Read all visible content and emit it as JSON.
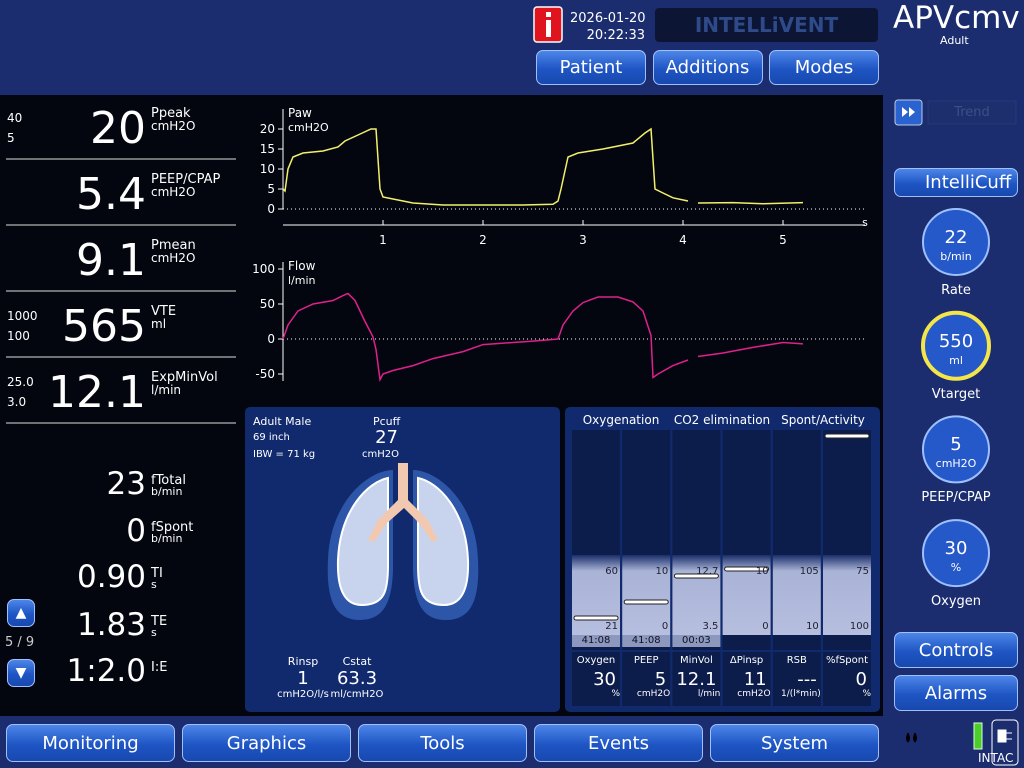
{
  "header": {
    "date": "2026-01-20",
    "time": "20:22:33",
    "brand": "INTELLiVENT",
    "mode": "APVcmv",
    "patient_group": "Adult",
    "buttons": [
      "Patient",
      "Additions",
      "Modes"
    ]
  },
  "monitoring": [
    {
      "name": "Ppeak",
      "unit": "cmH2O",
      "value": "20",
      "high": "40",
      "low": "5"
    },
    {
      "name": "PEEP/CPAP",
      "unit": "cmH2O",
      "value": "5.4"
    },
    {
      "name": "Pmean",
      "unit": "cmH2O",
      "value": "9.1"
    },
    {
      "name": "VTE",
      "unit": "ml",
      "value": "565",
      "high": "1000",
      "low": "100"
    },
    {
      "name": "ExpMinVol",
      "unit": "l/min",
      "value": "12.1",
      "high": "25.0",
      "low": "3.0"
    }
  ],
  "timing": [
    {
      "name": "fTotal",
      "unit": "b/min",
      "value": "23"
    },
    {
      "name": "fSpont",
      "unit": "b/min",
      "value": "0"
    },
    {
      "name": "TI",
      "unit": "s",
      "value": "0.90"
    },
    {
      "name": "TE",
      "unit": "s",
      "value": "1.83"
    },
    {
      "name": "I:E",
      "value": "1:2.0"
    }
  ],
  "page_indicator": "5 / 9",
  "chart_data": [
    {
      "type": "line",
      "title": "Paw",
      "unit": "cmH2O",
      "x_unit": "s",
      "color": "#f2f06a",
      "xlim": [
        0,
        5.82
      ],
      "xticks": [
        1,
        2,
        3,
        4,
        5
      ],
      "ylim": [
        0,
        25
      ],
      "yticks": [
        0,
        5,
        10,
        15,
        20
      ],
      "x": [
        0,
        0.02,
        0.05,
        0.1,
        0.2,
        0.4,
        0.55,
        0.62,
        0.75,
        0.88,
        0.93,
        0.97,
        1.0,
        1.1,
        1.3,
        1.6,
        2.0,
        2.4,
        2.7,
        2.75,
        2.78,
        2.85,
        2.95,
        3.2,
        3.5,
        3.62,
        3.68,
        3.72,
        3.8,
        3.9,
        4.05,
        4.1,
        4.15,
        4.5,
        4.8,
        5.2
      ],
      "values": [
        5,
        4.5,
        10,
        13,
        14,
        14.5,
        15.5,
        17,
        18.5,
        20,
        20,
        5,
        3,
        2.5,
        1.5,
        1,
        1,
        1,
        1.2,
        2,
        5,
        13,
        14,
        15,
        16.5,
        19,
        20,
        5,
        4,
        2.8,
        2,
        null,
        1.5,
        1.6,
        1.3,
        1.6
      ]
    },
    {
      "type": "line",
      "title": "Flow",
      "unit": "l/min",
      "color": "#e0208c",
      "xlim": [
        0,
        5.82
      ],
      "ylim": [
        -60,
        110
      ],
      "yticks": [
        -50,
        0,
        50,
        100
      ],
      "x": [
        0,
        0.05,
        0.15,
        0.3,
        0.5,
        0.6,
        0.65,
        0.72,
        0.82,
        0.9,
        0.93,
        0.97,
        1.0,
        1.1,
        1.3,
        1.5,
        1.8,
        2.0,
        2.3,
        2.5,
        2.75,
        2.8,
        2.9,
        3.0,
        3.15,
        3.35,
        3.5,
        3.6,
        3.68,
        3.7,
        3.75,
        3.9,
        4.05,
        4.1,
        4.15,
        4.4,
        4.7,
        5.0,
        5.2
      ],
      "values": [
        0,
        20,
        40,
        50,
        55,
        62,
        65,
        55,
        25,
        3,
        -15,
        -58,
        -50,
        -45,
        -38,
        -28,
        -18,
        -8,
        -5,
        -3,
        0,
        20,
        40,
        52,
        60,
        60,
        53,
        40,
        5,
        -55,
        -50,
        -38,
        -30,
        null,
        -25,
        -20,
        -12,
        -5,
        -7
      ]
    }
  ],
  "patient": {
    "description": "Adult Male",
    "height": "69 inch",
    "ibw": "IBW = 71 kg",
    "pcuff_label": "Pcuff",
    "pcuff_value": "27",
    "pcuff_unit": "cmH2O",
    "rinsp_label": "Rinsp",
    "rinsp_value": "1",
    "rinsp_unit": "cmH2O/l/s",
    "cstat_label": "Cstat",
    "cstat_value": "63.3",
    "cstat_unit": "ml/cmH2O"
  },
  "panel": {
    "groups": [
      "Oxygenation",
      "CO2 elimination",
      "Spont/Activity"
    ],
    "columns": [
      {
        "top": "60",
        "bottom": "21",
        "time": "41:08",
        "name": "Oxygen",
        "value": "30",
        "unit": "%"
      },
      {
        "top": "10",
        "bottom": "0",
        "time": "41:08",
        "name": "PEEP",
        "value": "5",
        "unit": "cmH2O"
      },
      {
        "top": "12.7",
        "bottom": "3.5",
        "time": "00:03",
        "name": "MinVol",
        "value": "12.1",
        "unit": "l/min"
      },
      {
        "top": "10",
        "bottom": "0",
        "name": "ΔPinsp",
        "value": "11",
        "unit": "cmH2O"
      },
      {
        "top": "105",
        "bottom": "10",
        "name": "RSB",
        "value": "---",
        "unit": "1/(l*min)"
      },
      {
        "top": "75",
        "bottom": "100",
        "name": "%fSpont",
        "value": "0",
        "unit": "%"
      }
    ]
  },
  "sidebar": {
    "trend": "Trend",
    "intellicuff": "IntelliCuff",
    "controls": [
      {
        "value": "22",
        "unit": "b/min",
        "label": "Rate"
      },
      {
        "value": "550",
        "unit": "ml",
        "label": "Vtarget",
        "active": true
      },
      {
        "value": "5",
        "unit": "cmH2O",
        "label": "PEEP/CPAP"
      },
      {
        "value": "30",
        "unit": "%",
        "label": "Oxygen"
      }
    ],
    "buttons": [
      "Controls",
      "Alarms"
    ]
  },
  "nav": [
    "Monitoring",
    "Graphics",
    "Tools",
    "Events",
    "System"
  ],
  "power": {
    "battery": "INT",
    "mains": "AC"
  }
}
